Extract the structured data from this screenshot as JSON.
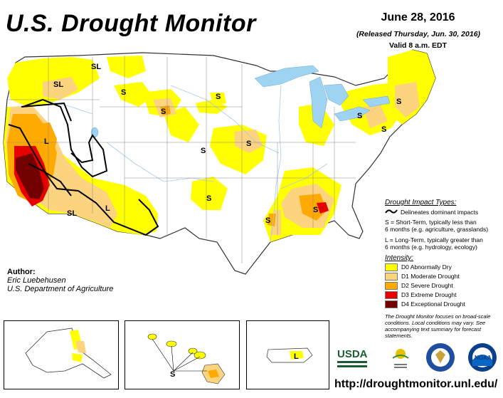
{
  "header": {
    "title": "U.S. Drought Monitor",
    "date": "June 28, 2016",
    "released": "(Released Thursday, Jun. 30, 2016)",
    "valid": "Valid 8 a.m. EDT"
  },
  "map_labels": {
    "sl_montana": "SL",
    "sl_oregon": "SL",
    "s_montana": "S",
    "s_dakota": "S",
    "s_minnesota": "S",
    "l_california": "L",
    "s_nebraska": "S",
    "s_iowa": "S",
    "s_oklahoma": "S",
    "sl_arizona": "SL",
    "l_newmexico": "L",
    "s_michigan": "S",
    "s_newengland": "S",
    "s_newyork": "S",
    "s_mississippi": "S",
    "s_georgia": "S",
    "s_hawaii": "S",
    "l_puertorico": "L"
  },
  "legend": {
    "impact_title": "Drought Impact Types:",
    "delineates": "Delineates dominant impacts",
    "s_desc_1": "S = Short-Term, typically less than",
    "s_desc_2": "6 months (e.g. agriculture, grasslands)",
    "l_desc_1": "L = Long-Term, typically greater than",
    "l_desc_2": "6 months (e.g. hydrology, ecology)",
    "intensity_title": "Intensity:",
    "levels": [
      {
        "label": "D0 Abnormally Dry",
        "color": "#ffff00"
      },
      {
        "label": "D1 Moderate Drought",
        "color": "#fcd37f"
      },
      {
        "label": "D2 Severe Drought",
        "color": "#ffaa00"
      },
      {
        "label": "D3 Extreme Drought",
        "color": "#e60000"
      },
      {
        "label": "D4 Exceptional Drought",
        "color": "#730000"
      }
    ]
  },
  "note": "The Drought Monitor focuses on broad-scale conditions. Local conditions may vary. See accompanying text summary for forecast statements.",
  "author": {
    "heading": "Author:",
    "name": "Eric Luebehusen",
    "org": "U.S. Department of Agriculture"
  },
  "logos": {
    "usda": "USDA",
    "noaa": "NOAA"
  },
  "url": "http://droughtmonitor.unl.edu/",
  "colors": {
    "water": "#9fd3f2",
    "d0": "#ffff00",
    "d1": "#fcd37f",
    "d2": "#ffaa00",
    "d3": "#e60000",
    "d4": "#730000",
    "rivers": "#a7cbe8"
  }
}
